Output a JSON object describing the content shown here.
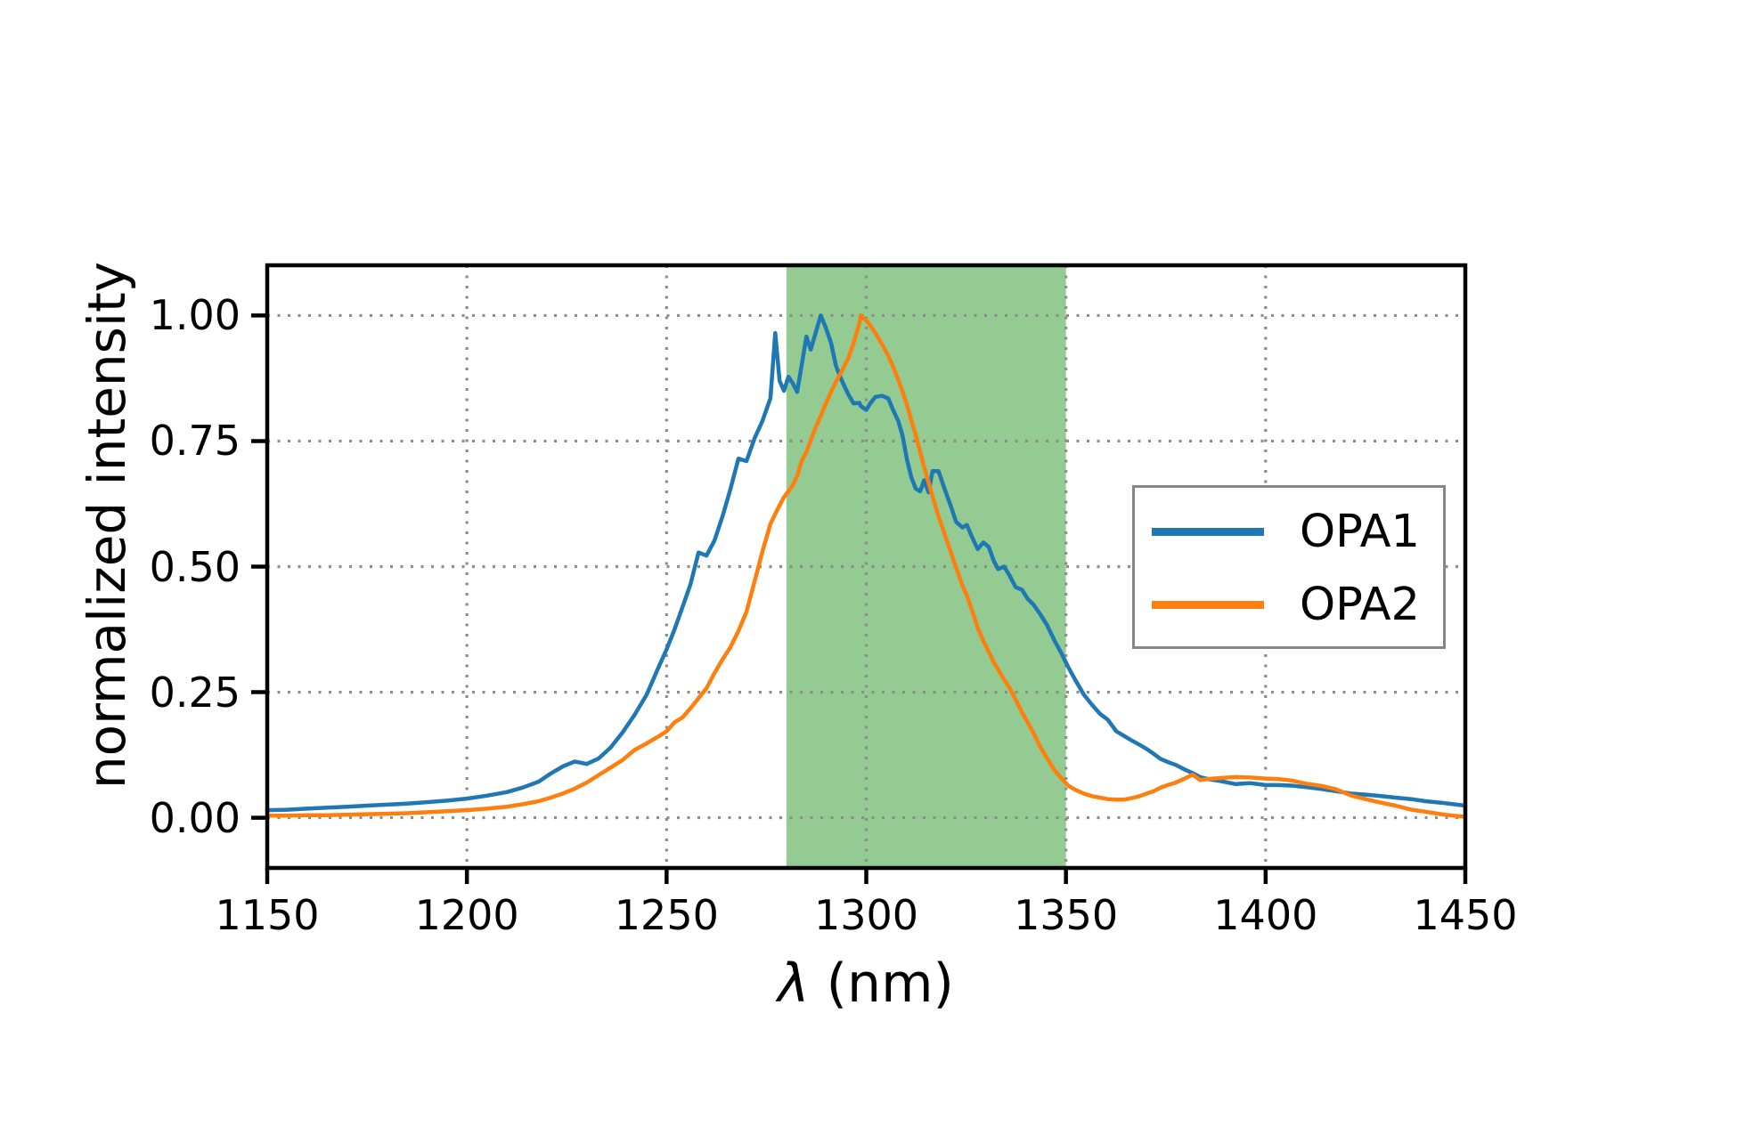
{
  "figure": {
    "background": "#ffffff"
  },
  "chart_data": {
    "type": "line",
    "title": "",
    "xlabel": "λ (nm)",
    "xlabel_symbol": "λ",
    "xlabel_rest": " (nm)",
    "ylabel": "normalized intensity",
    "xlim": [
      1150,
      1450
    ],
    "ylim": [
      -0.1,
      1.1
    ],
    "grid": true,
    "grid_style": "dotted",
    "grid_color": "#8c8c8c",
    "axes_color": "#000000",
    "xticks": [
      1150,
      1200,
      1250,
      1300,
      1350,
      1400,
      1450
    ],
    "xticklabels": [
      "1150",
      "1200",
      "1250",
      "1300",
      "1350",
      "1400",
      "1450"
    ],
    "yticks": [
      0.0,
      0.25,
      0.5,
      0.75,
      1.0
    ],
    "yticklabels": [
      "0.00",
      "0.25",
      "0.50",
      "0.75",
      "1.00"
    ],
    "shaded_region": {
      "x0": 1280,
      "x1": 1350,
      "color": "#93cb93"
    },
    "legend": {
      "entries": [
        "OPA1",
        "OPA2"
      ],
      "frame_color": "#868686",
      "background": "#ffffff",
      "location": "center right"
    },
    "x": [
      1150,
      1155,
      1160,
      1165,
      1170,
      1175,
      1180,
      1185,
      1190,
      1195,
      1200,
      1205,
      1210,
      1214,
      1218,
      1221,
      1224,
      1227,
      1230,
      1233,
      1236,
      1239,
      1242,
      1245,
      1248,
      1250,
      1252,
      1254,
      1256,
      1258,
      1260,
      1262,
      1264,
      1266,
      1268,
      1270,
      1272,
      1274,
      1276,
      1277.2,
      1278.3,
      1279.4,
      1280.5,
      1281.6,
      1282.7,
      1283.8,
      1285,
      1286.1,
      1287.2,
      1288.6,
      1289.9,
      1291.2,
      1292.4,
      1293.9,
      1295.5,
      1296.8,
      1298.3,
      1298.6,
      1300,
      1301,
      1302.3,
      1304,
      1305.5,
      1306.6,
      1308,
      1309.1,
      1310.2,
      1311.3,
      1312.4,
      1313.5,
      1314.5,
      1315.6,
      1316.6,
      1318.1,
      1319.6,
      1321.2,
      1322.5,
      1324.1,
      1325.2,
      1326.4,
      1327.9,
      1329.3,
      1330.7,
      1331.9,
      1333,
      1334.5,
      1335.9,
      1337.4,
      1339,
      1340.4,
      1341.9,
      1343.5,
      1345.3,
      1347.1,
      1348.7,
      1350.7,
      1352.5,
      1354.5,
      1356.5,
      1358.5,
      1360.5,
      1362.6,
      1364.5,
      1366.4,
      1368.5,
      1370.2,
      1372,
      1373.7,
      1375.5,
      1377.5,
      1379.5,
      1381.7,
      1383.6,
      1385.5,
      1388.7,
      1392.5,
      1396.1,
      1400,
      1403,
      1406.5,
      1410,
      1414.1,
      1417.5,
      1421.5,
      1425,
      1428.9,
      1432.5,
      1436.5,
      1440,
      1443.9,
      1447,
      1450
    ],
    "series": [
      {
        "name": "OPA1",
        "color": "#1f77b4",
        "values": [
          0.015,
          0.016,
          0.018,
          0.02,
          0.022,
          0.024,
          0.026,
          0.028,
          0.031,
          0.034,
          0.038,
          0.044,
          0.051,
          0.06,
          0.072,
          0.088,
          0.102,
          0.112,
          0.107,
          0.118,
          0.14,
          0.17,
          0.205,
          0.245,
          0.3,
          0.335,
          0.375,
          0.42,
          0.465,
          0.528,
          0.522,
          0.552,
          0.6,
          0.655,
          0.715,
          0.71,
          0.755,
          0.79,
          0.835,
          0.965,
          0.87,
          0.85,
          0.878,
          0.865,
          0.848,
          0.9,
          0.958,
          0.932,
          0.962,
          1.0,
          0.975,
          0.945,
          0.9,
          0.87,
          0.843,
          0.825,
          0.826,
          0.82,
          0.812,
          0.825,
          0.838,
          0.84,
          0.835,
          0.814,
          0.79,
          0.76,
          0.713,
          0.677,
          0.655,
          0.65,
          0.672,
          0.648,
          0.69,
          0.69,
          0.655,
          0.62,
          0.589,
          0.578,
          0.583,
          0.56,
          0.535,
          0.548,
          0.539,
          0.512,
          0.495,
          0.5,
          0.482,
          0.459,
          0.454,
          0.436,
          0.424,
          0.406,
          0.383,
          0.353,
          0.33,
          0.298,
          0.272,
          0.245,
          0.225,
          0.207,
          0.195,
          0.172,
          0.163,
          0.154,
          0.145,
          0.137,
          0.127,
          0.117,
          0.111,
          0.105,
          0.097,
          0.089,
          0.081,
          0.077,
          0.073,
          0.067,
          0.069,
          0.065,
          0.065,
          0.064,
          0.061,
          0.057,
          0.053,
          0.048,
          0.046,
          0.043,
          0.04,
          0.037,
          0.033,
          0.03,
          0.027,
          0.024
        ]
      },
      {
        "name": "OPA2",
        "color": "#ff7f0e",
        "values": [
          0.004,
          0.004,
          0.005,
          0.005,
          0.006,
          0.007,
          0.008,
          0.009,
          0.011,
          0.013,
          0.015,
          0.018,
          0.022,
          0.027,
          0.033,
          0.04,
          0.048,
          0.058,
          0.07,
          0.085,
          0.1,
          0.115,
          0.135,
          0.148,
          0.162,
          0.172,
          0.19,
          0.2,
          0.218,
          0.238,
          0.258,
          0.288,
          0.315,
          0.34,
          0.372,
          0.41,
          0.47,
          0.53,
          0.585,
          0.605,
          0.622,
          0.638,
          0.65,
          0.662,
          0.68,
          0.71,
          0.728,
          0.752,
          0.775,
          0.8,
          0.825,
          0.848,
          0.868,
          0.89,
          0.915,
          0.945,
          0.985,
          1.0,
          0.99,
          0.98,
          0.965,
          0.942,
          0.92,
          0.9,
          0.872,
          0.848,
          0.822,
          0.79,
          0.762,
          0.728,
          0.698,
          0.668,
          0.64,
          0.6,
          0.565,
          0.528,
          0.498,
          0.462,
          0.442,
          0.415,
          0.378,
          0.352,
          0.33,
          0.31,
          0.295,
          0.275,
          0.258,
          0.235,
          0.21,
          0.19,
          0.168,
          0.142,
          0.118,
          0.095,
          0.08,
          0.063,
          0.055,
          0.048,
          0.043,
          0.04,
          0.037,
          0.036,
          0.036,
          0.039,
          0.043,
          0.048,
          0.053,
          0.06,
          0.065,
          0.07,
          0.077,
          0.086,
          0.075,
          0.077,
          0.079,
          0.081,
          0.08,
          0.078,
          0.077,
          0.074,
          0.068,
          0.063,
          0.057,
          0.044,
          0.037,
          0.03,
          0.024,
          0.016,
          0.012,
          0.007,
          0.004,
          0.002
        ]
      }
    ]
  }
}
